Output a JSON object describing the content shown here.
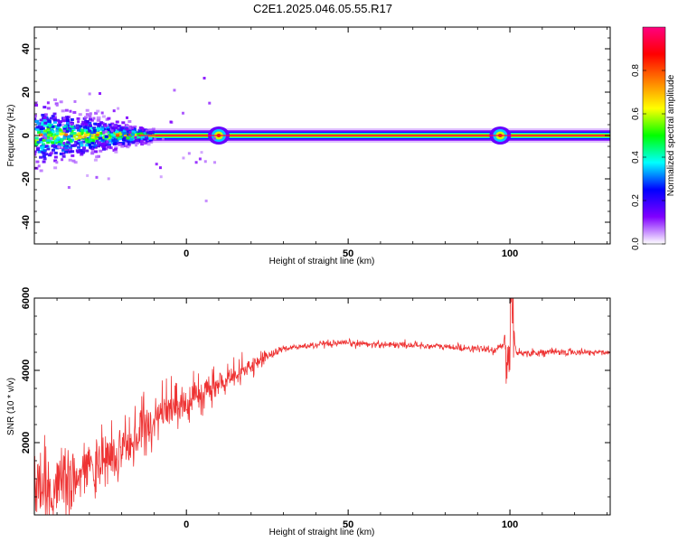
{
  "title": "C2E1.2025.046.05.55.R17",
  "chart_data": [
    {
      "type": "heatmap",
      "xlabel": "Height of straight line (km)",
      "ylabel": "Frequency (Hz)",
      "xlim": [
        -47,
        131
      ],
      "ylim": [
        -50,
        50
      ],
      "x_ticks": [
        0,
        50,
        100
      ],
      "y_ticks": [
        -40,
        -20,
        0,
        20,
        40
      ],
      "colorbar": {
        "label": "Normalized spectral amplitude",
        "range": [
          0,
          1
        ],
        "ticks": [
          "0.0",
          "0.2",
          "0.4",
          "0.6",
          "0.8"
        ],
        "colors": [
          "#ffffff",
          "#8000ff",
          "#0000ff",
          "#00ffff",
          "#00ff00",
          "#ffff00",
          "#ff8000",
          "#ff0000",
          "#ff0080"
        ]
      },
      "band": {
        "center_frequency": 0,
        "peak_amplitude": 0.95,
        "noisy_region_end_km": -15,
        "bright_spots_km": [
          10,
          97
        ]
      }
    },
    {
      "type": "line",
      "xlabel": "Height of straight line (km)",
      "ylabel": "SNR (10 * v/v)",
      "xlim": [
        -47,
        131
      ],
      "ylim": [
        0,
        6000
      ],
      "x_ticks": [
        0,
        50,
        100
      ],
      "y_ticks": [
        2000,
        4000,
        6000
      ],
      "color": "#ee3333",
      "series": [
        {
          "x": [
            -47,
            -40,
            -35,
            -30,
            -25,
            -20,
            -15,
            -10,
            -5,
            0,
            5,
            10,
            15,
            20,
            25,
            30,
            35,
            40,
            50,
            60,
            70,
            80,
            90,
            95,
            98,
            100,
            102,
            105,
            110,
            120,
            131
          ],
          "values": [
            500,
            700,
            900,
            1200,
            1500,
            1800,
            2200,
            2600,
            2900,
            3100,
            3300,
            3600,
            3800,
            4100,
            4400,
            4600,
            4650,
            4700,
            4750,
            4720,
            4700,
            4650,
            4600,
            4550,
            4700,
            5600,
            4500,
            4480,
            4500,
            4500,
            4500
          ]
        }
      ]
    }
  ]
}
